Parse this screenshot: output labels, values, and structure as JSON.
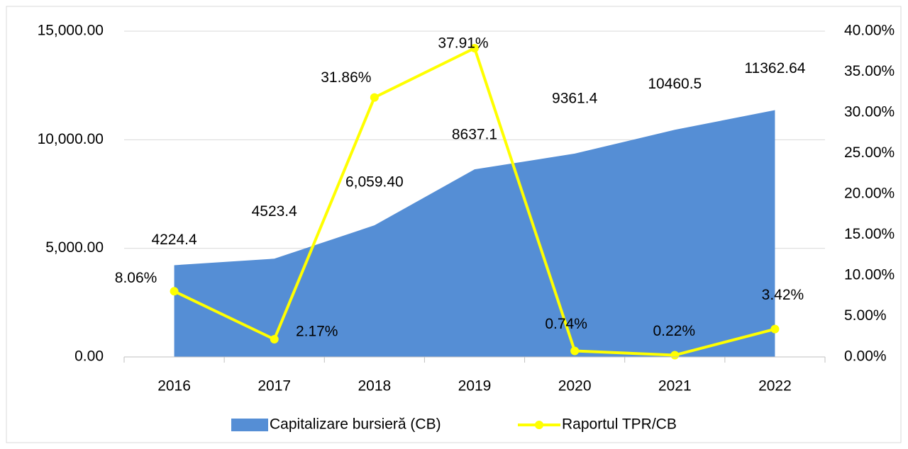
{
  "chart_data": {
    "type": "area-line",
    "categories": [
      "2016",
      "2017",
      "2018",
      "2019",
      "2020",
      "2021",
      "2022"
    ],
    "series": [
      {
        "name": "Capitalizare bursieră (CB)",
        "type": "area",
        "color": "#558ed5",
        "values": [
          4224.4,
          4523.4,
          6059.4,
          8637.1,
          9361.4,
          10460.5,
          11362.64
        ],
        "value_labels": [
          "4224.4",
          "4523.4",
          "6,059.40",
          "8637.1",
          "9361.4",
          "10460.5",
          "11362.64"
        ]
      },
      {
        "name": "Raportul TPR/CB",
        "type": "line",
        "axis": "y2",
        "color": "#ffff00",
        "values": [
          8.06,
          2.17,
          31.86,
          37.91,
          0.74,
          0.22,
          3.42
        ],
        "value_labels": [
          "8.06%",
          "2.17%",
          "31.86%",
          "37.91%",
          "0.74%",
          "0.22%",
          "3.42%"
        ]
      }
    ],
    "ylim": [
      0,
      15000
    ],
    "yticks": [
      {
        "value": 0,
        "label": "0.00"
      },
      {
        "value": 5000,
        "label": "5,000.00"
      },
      {
        "value": 10000,
        "label": "10,000.00"
      },
      {
        "value": 15000,
        "label": "15,000.00"
      }
    ],
    "y2lim": [
      0,
      40
    ],
    "y2ticks": [
      {
        "value": 0,
        "label": "0.00%"
      },
      {
        "value": 5,
        "label": "5.00%"
      },
      {
        "value": 10,
        "label": "10.00%"
      },
      {
        "value": 15,
        "label": "15.00%"
      },
      {
        "value": 20,
        "label": "20.00%"
      },
      {
        "value": 25,
        "label": "25.00%"
      },
      {
        "value": 30,
        "label": "30.00%"
      },
      {
        "value": 35,
        "label": "35.00%"
      },
      {
        "value": 40,
        "label": "40.00%"
      }
    ],
    "grid": true,
    "legend": "bottom"
  }
}
